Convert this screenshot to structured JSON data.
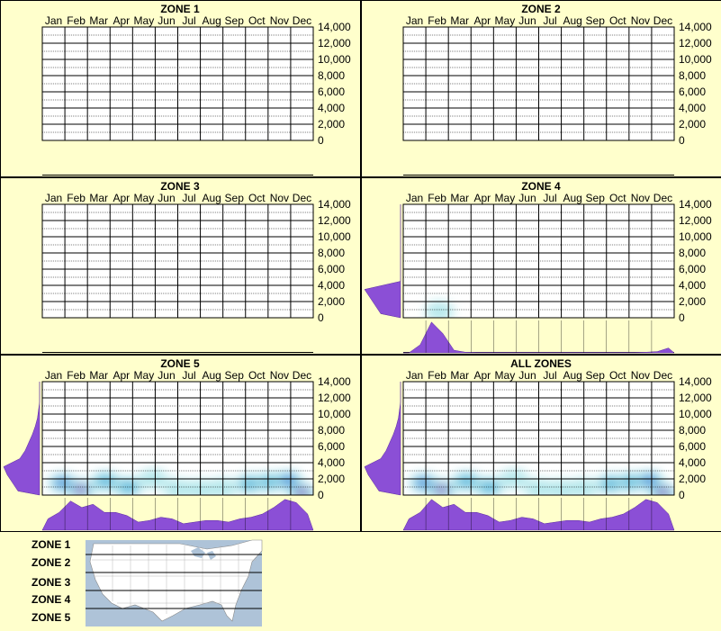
{
  "months": [
    "Jan",
    "Feb",
    "Mar",
    "Apr",
    "May",
    "Jun",
    "Jul",
    "Aug",
    "Sep",
    "Oct",
    "Nov",
    "Dec"
  ],
  "y_ticks": [
    "14,000",
    "12,000",
    "10,000",
    "8,000",
    "6,000",
    "4,000",
    "2,000",
    "0"
  ],
  "legend": {
    "zones": [
      "ZONE 1",
      "ZONE 2",
      "ZONE 3",
      "ZONE 4",
      "ZONE 5"
    ]
  },
  "colors": {
    "background": "#ffffcc",
    "histogram": "#8b4fd6",
    "heat_low": "#aee6ea",
    "heat_mid": "#1a5bd8",
    "heat_high": "#e0129a"
  },
  "chart_data": [
    {
      "type": "heatmap",
      "title": "ZONE 1",
      "x": [
        "Jan",
        "Feb",
        "Mar",
        "Apr",
        "May",
        "Jun",
        "Jul",
        "Aug",
        "Sep",
        "Oct",
        "Nov",
        "Dec"
      ],
      "ylim": [
        0,
        14000
      ],
      "grid": true,
      "hotspots": [],
      "month_histogram": [],
      "elevation_histogram": []
    },
    {
      "type": "heatmap",
      "title": "ZONE 2",
      "x": [
        "Jan",
        "Feb",
        "Mar",
        "Apr",
        "May",
        "Jun",
        "Jul",
        "Aug",
        "Sep",
        "Oct",
        "Nov",
        "Dec"
      ],
      "ylim": [
        0,
        14000
      ],
      "grid": true,
      "hotspots": [],
      "month_histogram": [],
      "elevation_histogram": []
    },
    {
      "type": "heatmap",
      "title": "ZONE 3",
      "x": [
        "Jan",
        "Feb",
        "Mar",
        "Apr",
        "May",
        "Jun",
        "Jul",
        "Aug",
        "Sep",
        "Oct",
        "Nov",
        "Dec"
      ],
      "ylim": [
        0,
        14000
      ],
      "grid": true,
      "hotspots": [],
      "month_histogram": [],
      "elevation_histogram": []
    },
    {
      "type": "heatmap",
      "title": "ZONE 4",
      "x": [
        "Jan",
        "Feb",
        "Mar",
        "Apr",
        "May",
        "Jun",
        "Jul",
        "Aug",
        "Sep",
        "Oct",
        "Nov",
        "Dec"
      ],
      "ylim": [
        0,
        14000
      ],
      "grid": true,
      "hotspots": [
        {
          "month": 1.1,
          "elev": 800,
          "level": 0.3
        }
      ],
      "month_histogram": [
        0,
        0.25,
        0.95,
        0.6,
        0.08,
        0.02,
        0.01,
        0.01,
        0.01,
        0.01,
        0.01,
        0.01,
        0.01,
        0.01,
        0.01,
        0.01,
        0.01,
        0.01,
        0.01,
        0.01,
        0.01,
        0.02,
        0.04,
        0.15
      ],
      "elevation_histogram": [
        0.55,
        0.7,
        0.85,
        1.0,
        0,
        0,
        0,
        0,
        0,
        0,
        0,
        0,
        0,
        0
      ]
    },
    {
      "type": "heatmap",
      "title": "ZONE 5",
      "x": [
        "Jan",
        "Feb",
        "Mar",
        "Apr",
        "May",
        "Jun",
        "Jul",
        "Aug",
        "Sep",
        "Oct",
        "Nov",
        "Dec"
      ],
      "ylim": [
        0,
        14000
      ],
      "grid": true,
      "hotspots": [
        {
          "month": 0.4,
          "elev": 1500,
          "level": 0.65
        },
        {
          "month": 1.2,
          "elev": 700,
          "level": 1.0
        },
        {
          "month": 2.3,
          "elev": 1700,
          "level": 0.55
        },
        {
          "month": 3.3,
          "elev": 1000,
          "level": 0.45
        },
        {
          "month": 4.4,
          "elev": 2000,
          "level": 0.3
        },
        {
          "month": 5.5,
          "elev": 800,
          "level": 0.25
        },
        {
          "month": 6.5,
          "elev": 700,
          "level": 0.2
        },
        {
          "month": 7.5,
          "elev": 900,
          "level": 0.25
        },
        {
          "month": 8.7,
          "elev": 1400,
          "level": 0.4
        },
        {
          "month": 9.6,
          "elev": 1600,
          "level": 0.55
        },
        {
          "month": 10.4,
          "elev": 1800,
          "level": 0.6
        },
        {
          "month": 11.0,
          "elev": 300,
          "level": 1.0
        }
      ],
      "month_histogram": [
        0.35,
        0.55,
        0.9,
        0.7,
        0.8,
        0.55,
        0.55,
        0.45,
        0.25,
        0.3,
        0.4,
        0.35,
        0.2,
        0.25,
        0.3,
        0.3,
        0.25,
        0.35,
        0.4,
        0.5,
        0.7,
        0.95,
        0.85,
        0.5
      ],
      "elevation_histogram": [
        0.6,
        0.75,
        0.9,
        1.0,
        0.55,
        0.4,
        0.3,
        0.2,
        0.12,
        0.06,
        0.03,
        0,
        0,
        0
      ]
    },
    {
      "type": "heatmap",
      "title": "ALL ZONES",
      "x": [
        "Jan",
        "Feb",
        "Mar",
        "Apr",
        "May",
        "Jun",
        "Jul",
        "Aug",
        "Sep",
        "Oct",
        "Nov",
        "Dec"
      ],
      "ylim": [
        0,
        14000
      ],
      "grid": true,
      "hotspots": [
        {
          "month": 0.4,
          "elev": 1500,
          "level": 0.65
        },
        {
          "month": 1.2,
          "elev": 700,
          "level": 1.0
        },
        {
          "month": 2.3,
          "elev": 1700,
          "level": 0.55
        },
        {
          "month": 3.3,
          "elev": 1000,
          "level": 0.45
        },
        {
          "month": 4.4,
          "elev": 2000,
          "level": 0.3
        },
        {
          "month": 5.5,
          "elev": 800,
          "level": 0.25
        },
        {
          "month": 6.5,
          "elev": 700,
          "level": 0.2
        },
        {
          "month": 7.5,
          "elev": 900,
          "level": 0.25
        },
        {
          "month": 8.7,
          "elev": 1400,
          "level": 0.4
        },
        {
          "month": 9.6,
          "elev": 1600,
          "level": 0.55
        },
        {
          "month": 10.4,
          "elev": 1800,
          "level": 0.6
        },
        {
          "month": 11.0,
          "elev": 300,
          "level": 1.0
        }
      ],
      "month_histogram": [
        0.35,
        0.55,
        0.95,
        0.7,
        0.8,
        0.55,
        0.55,
        0.45,
        0.25,
        0.3,
        0.4,
        0.35,
        0.2,
        0.25,
        0.3,
        0.3,
        0.25,
        0.35,
        0.4,
        0.5,
        0.7,
        0.95,
        0.85,
        0.5
      ],
      "elevation_histogram": [
        0.6,
        0.75,
        0.9,
        1.0,
        0.55,
        0.4,
        0.3,
        0.2,
        0.12,
        0.06,
        0.03,
        0,
        0,
        0
      ]
    }
  ]
}
